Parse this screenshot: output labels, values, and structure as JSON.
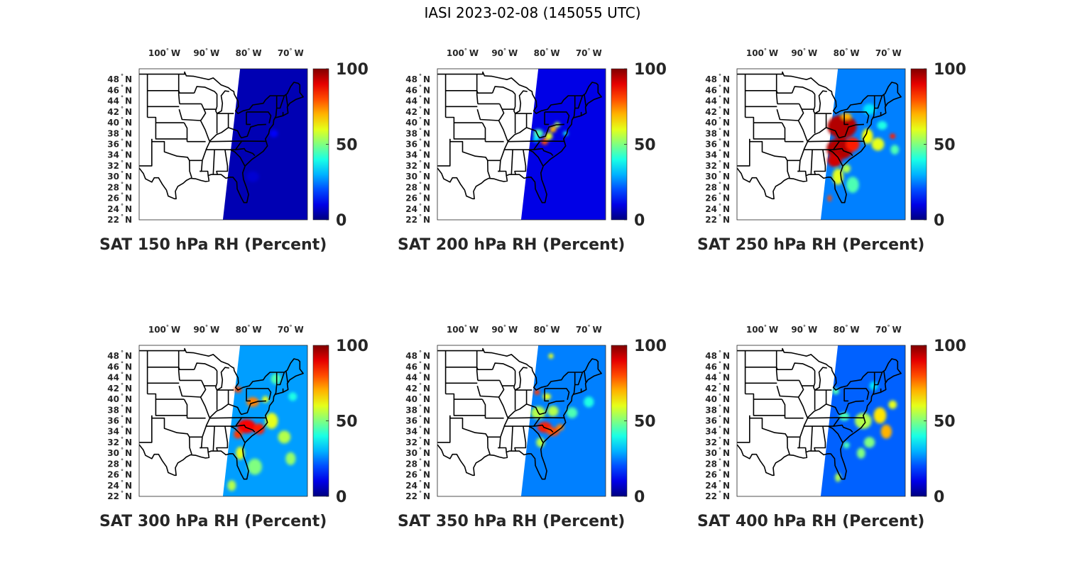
{
  "figure": {
    "title": "IASI 2023-02-08 (145055 UTC)"
  },
  "axes": {
    "lon_ticks": [
      {
        "value": -100,
        "deg": "100",
        "hemi": "W"
      },
      {
        "value": -90,
        "deg": "90",
        "hemi": "W"
      },
      {
        "value": -80,
        "deg": "80",
        "hemi": "W"
      },
      {
        "value": -70,
        "deg": "70",
        "hemi": "W"
      }
    ],
    "lat_ticks": [
      {
        "value": 48,
        "deg": "48",
        "hemi": "N"
      },
      {
        "value": 46,
        "deg": "46",
        "hemi": "N"
      },
      {
        "value": 44,
        "deg": "44",
        "hemi": "N"
      },
      {
        "value": 42,
        "deg": "42",
        "hemi": "N"
      },
      {
        "value": 40,
        "deg": "40",
        "hemi": "N"
      },
      {
        "value": 38,
        "deg": "38",
        "hemi": "N"
      },
      {
        "value": 36,
        "deg": "36",
        "hemi": "N"
      },
      {
        "value": 34,
        "deg": "34",
        "hemi": "N"
      },
      {
        "value": 32,
        "deg": "32",
        "hemi": "N"
      },
      {
        "value": 30,
        "deg": "30",
        "hemi": "N"
      },
      {
        "value": 28,
        "deg": "28",
        "hemi": "N"
      },
      {
        "value": 26,
        "deg": "26",
        "hemi": "N"
      },
      {
        "value": 24,
        "deg": "24",
        "hemi": "N"
      },
      {
        "value": 22,
        "deg": "22",
        "hemi": "N"
      }
    ],
    "lon_range": [
      -106,
      -66
    ],
    "lat_range": [
      22,
      50
    ],
    "degree_symbol": "°"
  },
  "colorbar": {
    "min": 0,
    "max": 100,
    "ticks": [
      "100",
      "50",
      "0"
    ],
    "colormap": "jet"
  },
  "panels": [
    {
      "id": "150",
      "title": "SAT 150 hPa RH (Percent)",
      "typical_rh": 5
    },
    {
      "id": "200",
      "title": "SAT 200 hPa RH (Percent)",
      "typical_rh": 10
    },
    {
      "id": "250",
      "title": "SAT 250 hPa RH (Percent)",
      "typical_rh": 25
    },
    {
      "id": "300",
      "title": "SAT 300 hPa RH (Percent)",
      "typical_rh": 28
    },
    {
      "id": "350",
      "title": "SAT 350 hPa RH (Percent)",
      "typical_rh": 25
    },
    {
      "id": "400",
      "title": "SAT 400 hPa RH (Percent)",
      "typical_rh": 22
    }
  ],
  "colors": {
    "map_background": "#ffffff",
    "state_lines": "#000000",
    "text": "#262626"
  }
}
